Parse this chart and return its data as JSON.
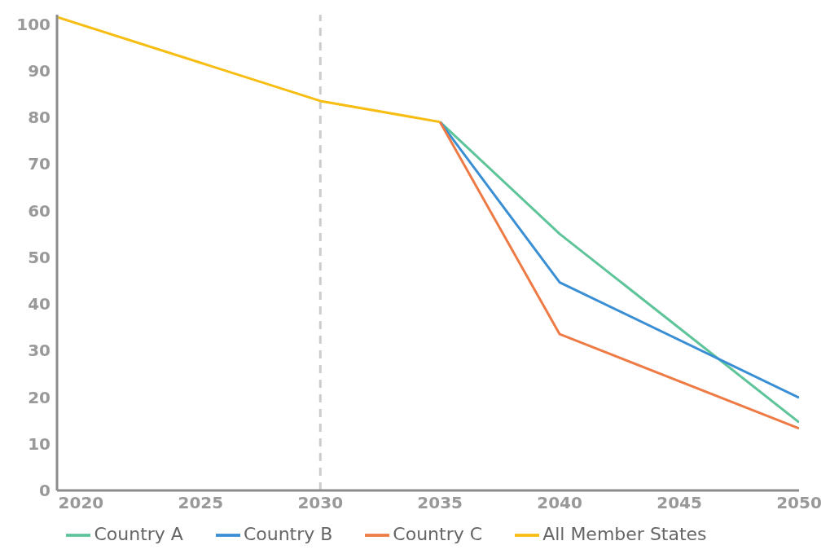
{
  "chart_data": {
    "type": "line",
    "x": [
      2019,
      2030,
      2035,
      2040,
      2050
    ],
    "series": [
      {
        "name": "Country A",
        "color": "#5ec49a",
        "values": [
          null,
          null,
          79,
          55,
          14.6
        ]
      },
      {
        "name": "Country B",
        "color": "#3a8fd4",
        "values": [
          null,
          null,
          79,
          44.6,
          19.9
        ]
      },
      {
        "name": "Country C",
        "color": "#ee7b45",
        "values": [
          null,
          null,
          79,
          33.5,
          13.3
        ]
      },
      {
        "name": "All Member States",
        "color": "#f7bd13",
        "values": [
          101.5,
          83.5,
          79,
          null,
          null
        ]
      }
    ],
    "xlim": [
      2019,
      2050
    ],
    "xticks": [
      2020,
      2025,
      2030,
      2035,
      2040,
      2045,
      2050
    ],
    "ylim": [
      0,
      102
    ],
    "yticks": [
      0,
      10,
      20,
      30,
      40,
      50,
      60,
      70,
      80,
      90,
      100
    ],
    "ref_lines": [
      {
        "axis": "x",
        "value": 2030,
        "color": "#cccccc",
        "line_style": "dashed"
      }
    ],
    "grid": false,
    "legend": "bottom",
    "marker": "none",
    "line_style": "solid"
  }
}
